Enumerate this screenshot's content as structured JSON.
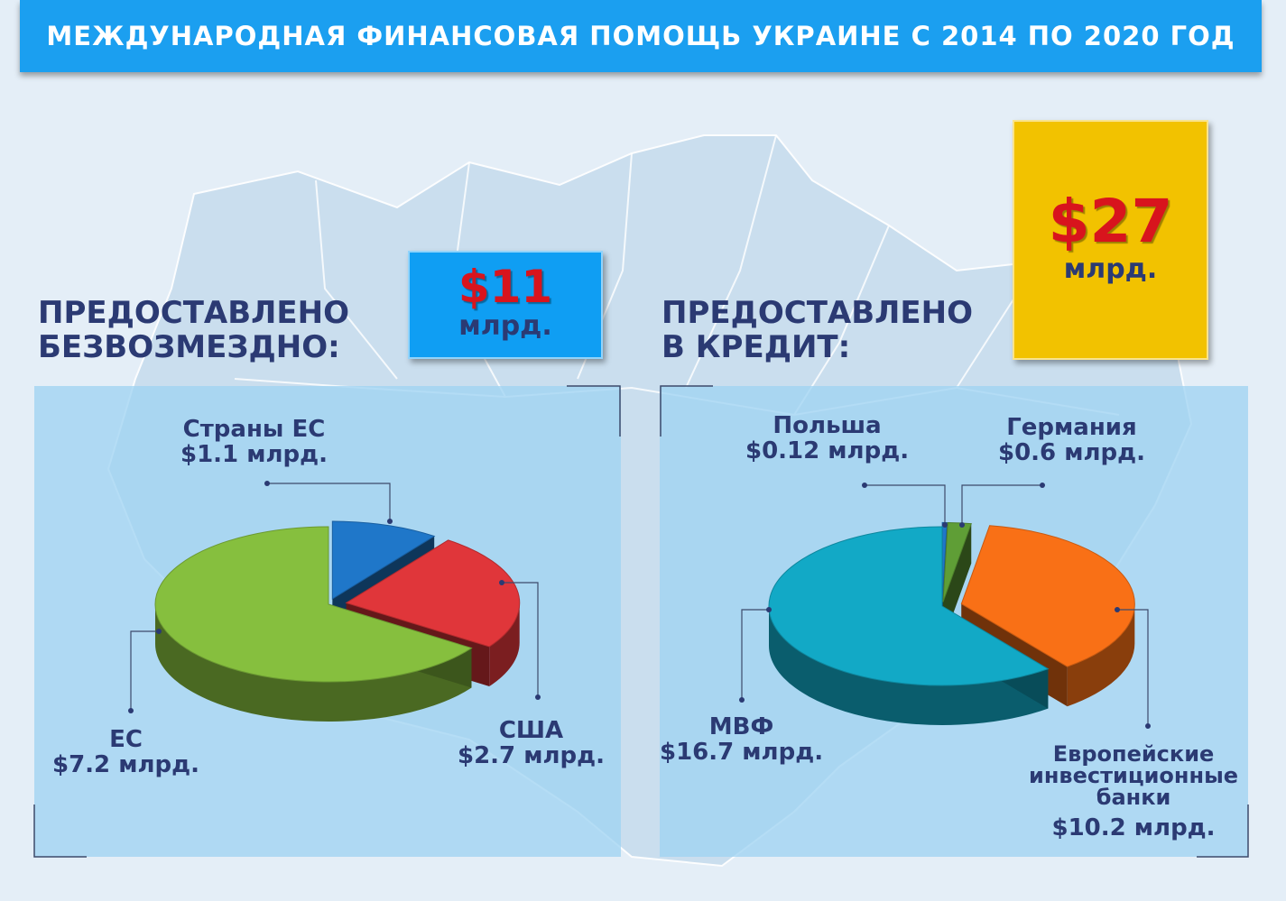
{
  "header": {
    "title": "МЕЖДУНАРОДНАЯ ФИНАНСОВАЯ ПОМОЩЬ УКРАИНЕ С 2014 ПО 2020 ГОД"
  },
  "grants": {
    "title_line1": "ПРЕДОСТАВЛЕНО",
    "title_line2": "БЕЗВОЗМЕЗДНО:",
    "total_amount": "$11",
    "total_unit": "млрд.",
    "box_color": "#0f9ef3"
  },
  "credits": {
    "title_line1": "ПРЕДОСТАВЛЕНО",
    "title_line2": "В КРЕДИТ:",
    "total_amount": "$27",
    "total_unit": "млрд.",
    "box_color": "#f2c200"
  },
  "chart_data": [
    {
      "type": "pie",
      "title": "ПРЕДОСТАВЛЕНО БЕЗВОЗМЕЗДНО:",
      "total": 11,
      "unit": "млрд. $",
      "series": [
        {
          "label_line1": "Страны ЕС",
          "label_line2": "$1.1 млрд.",
          "value": 1.1,
          "color": "#1f77c9"
        },
        {
          "label_line1": "США",
          "label_line2": "$2.7 млрд.",
          "value": 2.7,
          "color": "#e0363a"
        },
        {
          "label_line1": "ЕС",
          "label_line2": "$7.2 млрд.",
          "value": 7.2,
          "color": "#86bf3e"
        }
      ]
    },
    {
      "type": "pie",
      "title": "ПРЕДОСТАВЛЕНО В КРЕДИТ:",
      "total": 27,
      "unit": "млрд. $",
      "series": [
        {
          "label_line1": "Польша",
          "label_line2": "$0.12 млрд.",
          "value": 0.12,
          "color": "#1f77c9"
        },
        {
          "label_line1": "Германия",
          "label_line2": "$0.6 млрд.",
          "value": 0.6,
          "color": "#5f9e36"
        },
        {
          "label_line1": "Европейские",
          "label_line2": "инвестиционные",
          "label_line3": "банки",
          "label_line4": "$10.2 млрд.",
          "value": 10.2,
          "color": "#f97016"
        },
        {
          "label_line1": "МВФ",
          "label_line2": "$16.7 млрд.",
          "value": 16.7,
          "color": "#12a9c6"
        }
      ]
    }
  ]
}
